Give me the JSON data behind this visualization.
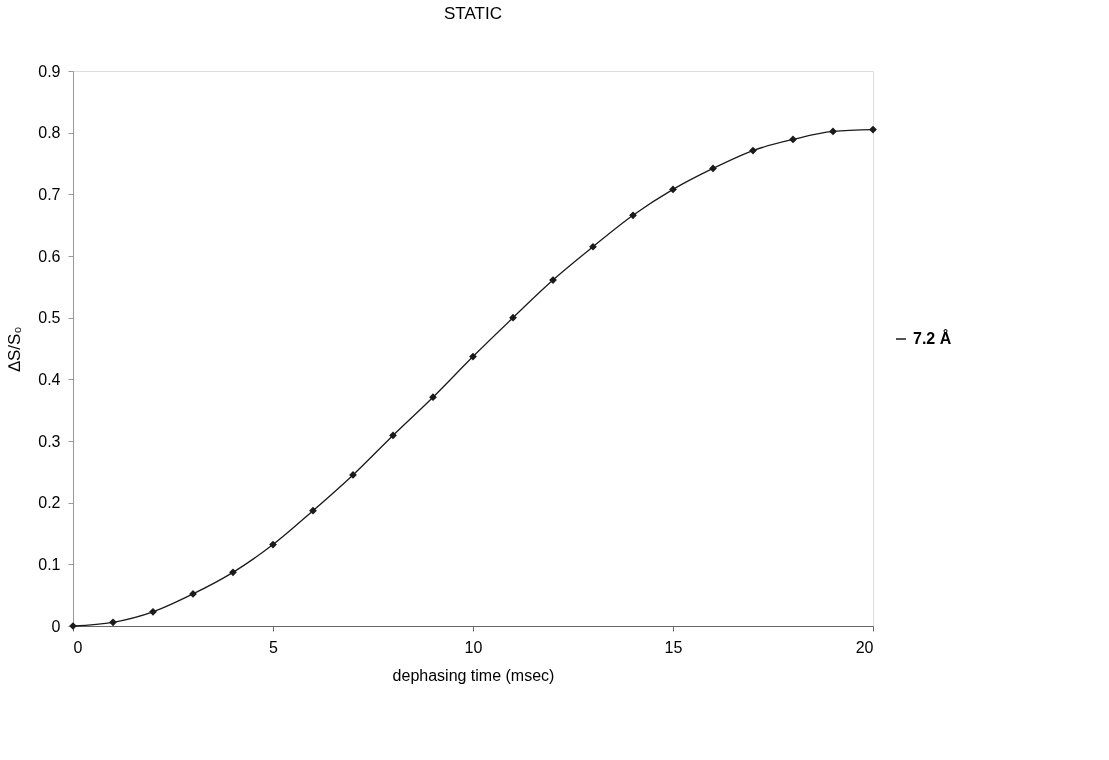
{
  "chart_data": {
    "type": "line",
    "title": "STATIC",
    "xlabel": "dephasing time (msec)",
    "ylabel": "∆S/S₀",
    "x": [
      0,
      1,
      2,
      3,
      4,
      5,
      6,
      7,
      8,
      9,
      10,
      11,
      12,
      13,
      14,
      15,
      16,
      17,
      18,
      19,
      20
    ],
    "series": [
      {
        "name": "7.2 Å",
        "color": "#1a1a1a",
        "values": [
          0,
          0.006,
          0.023,
          0.052,
          0.087,
          0.132,
          0.187,
          0.245,
          0.309,
          0.371,
          0.437,
          0.5,
          0.561,
          0.615,
          0.666,
          0.708,
          0.742,
          0.771,
          0.789,
          0.802,
          0.805
        ]
      }
    ],
    "xlim": [
      0,
      20
    ],
    "xticks": [
      0,
      5,
      10,
      15,
      20
    ],
    "ylim": [
      0,
      0.9
    ],
    "yticks": [
      0,
      0.1,
      0.2,
      0.3,
      0.4,
      0.5,
      0.6,
      0.7,
      0.8,
      0.9
    ],
    "grid": false,
    "legend": "right",
    "marker": "diamond",
    "line_style": "solid"
  }
}
